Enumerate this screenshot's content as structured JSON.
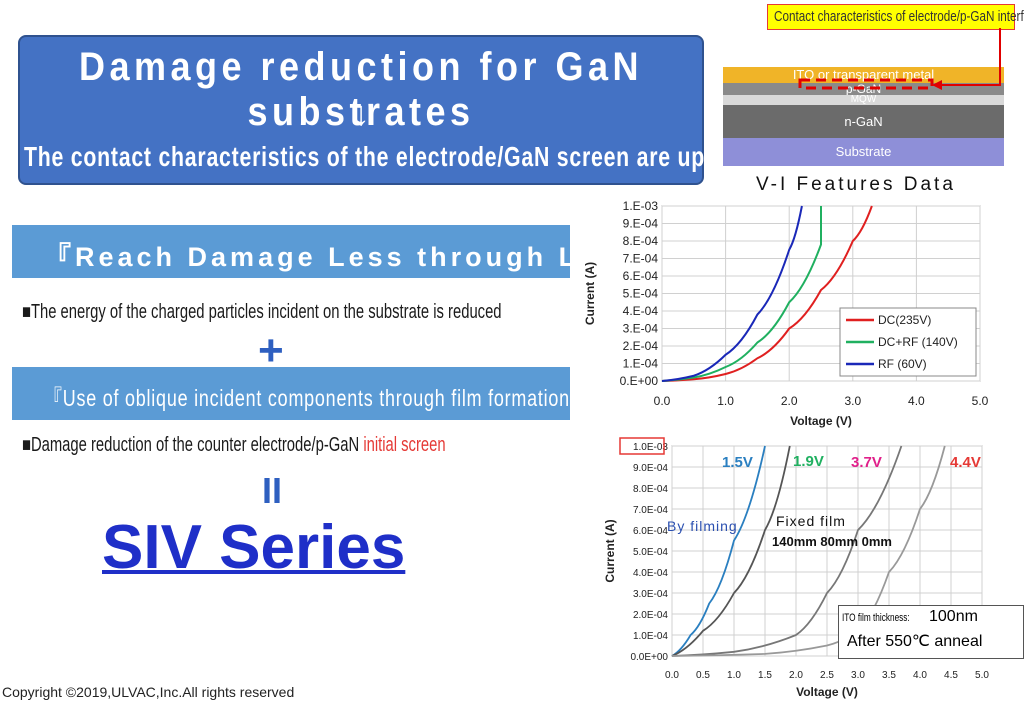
{
  "title": {
    "main": "Damage reduction for GaN substrates",
    "arrow": "↓",
    "sub": "The contact characteristics of the electrode/GaN screen are up"
  },
  "left": {
    "band1": "『Reach Damage Less through L.V.S.』",
    "bullet1": "■The energy of the charged particles incident on the substrate is reduced",
    "plus": "+",
    "band2": "『Use of oblique incident components through film formation』",
    "bullet2_main": "■Damage reduction of the counter electrode/p-GaN ",
    "bullet2_highlight": "initial screen",
    "equals": "II",
    "siv": "SIV Series"
  },
  "copyright": "Copyright ©2019,ULVAC,Inc.All rights reserved",
  "diagram": {
    "label": "Contact characteristics of electrode/p-GaN interface",
    "layers": [
      "ITO or transparent metal",
      "p-GaN",
      "MQW",
      "n-GaN",
      "Substrate"
    ],
    "colors": {
      "ito": "#f0b428",
      "pgan": "#8a8a8a",
      "mqw": "#d9d9d9",
      "ngan": "#6b6b6b",
      "substrate": "#8e8fd8",
      "marker": "#e00000"
    }
  },
  "vi_title": "V-I Features Data",
  "chart_data": [
    {
      "type": "line",
      "xlabel": "Voltage (V)",
      "ylabel": "Current (A)",
      "xlim": [
        0,
        5
      ],
      "ylim": [
        0,
        0.001
      ],
      "x_ticks": [
        "0.0",
        "1.0",
        "2.0",
        "3.0",
        "4.0",
        "5.0"
      ],
      "y_ticks": [
        "0.E+00",
        "1.E-04",
        "2.E-04",
        "3.E-04",
        "4.E-04",
        "5.E-04",
        "6.E-04",
        "7.E-04",
        "8.E-04",
        "9.E-04",
        "1.E-03"
      ],
      "legend": "bottom-right",
      "grid": true,
      "series": [
        {
          "name": "DC(235V)",
          "color": "#e02020",
          "x": [
            0,
            0.5,
            1.0,
            1.5,
            2.0,
            2.5,
            3.0,
            3.3
          ],
          "y": [
            0,
            1e-05,
            4e-05,
            0.00013,
            0.0003,
            0.00052,
            0.0008,
            0.001
          ]
        },
        {
          "name": "DC+RF (140V)",
          "color": "#20b060",
          "x": [
            0,
            0.5,
            1.0,
            1.5,
            2.0,
            2.5,
            2.5
          ],
          "y": [
            0,
            2e-05,
            8e-05,
            0.00022,
            0.00045,
            0.00078,
            0.001
          ]
        },
        {
          "name": "RF (60V)",
          "color": "#1a28b8",
          "x": [
            0,
            0.5,
            1.0,
            1.5,
            2.0,
            2.2
          ],
          "y": [
            0,
            3e-05,
            0.00015,
            0.00038,
            0.00075,
            0.001
          ]
        }
      ]
    },
    {
      "type": "line",
      "xlabel": "Voltage (V)",
      "ylabel": "Current (A)",
      "xlim": [
        0,
        5
      ],
      "ylim": [
        0,
        0.001
      ],
      "x_ticks": [
        "0.0",
        "0.5",
        "1.0",
        "1.5",
        "2.0",
        "2.5",
        "3.0",
        "3.5",
        "4.0",
        "4.5",
        "5.0"
      ],
      "y_ticks": [
        "0.0E+00",
        "1.0E-04",
        "2.0E-04",
        "3.0E-04",
        "4.0E-04",
        "5.0E-04",
        "6.0E-04",
        "7.0E-04",
        "8.0E-04",
        "9.0E-04",
        "1.0E-03"
      ],
      "grid": true,
      "annotations": {
        "v1": "1.5V",
        "v2": "1.9V",
        "v3": "3.7V",
        "v4": "4.4V",
        "by_filming": "By filming",
        "fixed_film": "Fixed film",
        "distances": "140mm  80mm  0mm",
        "ito_label": "ITO film thickness:",
        "ito_value": "100nm",
        "anneal": "After 550℃ anneal"
      },
      "series": [
        {
          "color": "#2a7fc0",
          "x": [
            0,
            0.3,
            0.6,
            1.0,
            1.5
          ],
          "y": [
            0,
            0.0001,
            0.00025,
            0.00055,
            0.001
          ]
        },
        {
          "color": "#555555",
          "x": [
            0,
            0.5,
            1.0,
            1.5,
            1.9
          ],
          "y": [
            0,
            0.00012,
            0.0003,
            0.0006,
            0.001
          ]
        },
        {
          "color": "#777777",
          "x": [
            0,
            1.0,
            2.0,
            2.5,
            3.0,
            3.7
          ],
          "y": [
            0,
            2e-05,
            0.0001,
            0.0003,
            0.0006,
            0.001
          ]
        },
        {
          "color": "#999999",
          "x": [
            0,
            1.5,
            2.5,
            3.0,
            3.5,
            4.0,
            4.4
          ],
          "y": [
            0,
            1e-05,
            5e-05,
            0.00012,
            0.0004,
            0.0007,
            0.001
          ]
        }
      ]
    }
  ]
}
